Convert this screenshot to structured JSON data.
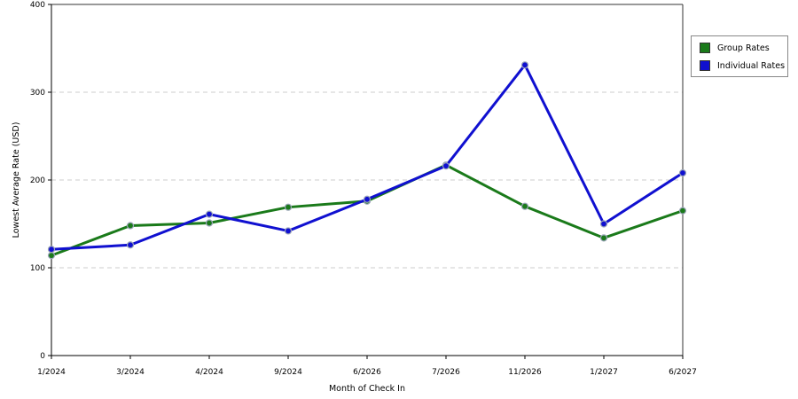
{
  "chart_data": {
    "type": "line",
    "title": "",
    "xlabel": "Month of Check In",
    "ylabel": "Lowest Average Rate (USD)",
    "categories": [
      "1/2024",
      "3/2024",
      "4/2024",
      "9/2024",
      "6/2026",
      "7/2026",
      "11/2026",
      "1/2027",
      "6/2027"
    ],
    "ylim": [
      0,
      400
    ],
    "yticks": [
      "0",
      "100",
      "200",
      "300",
      "400"
    ],
    "grid": true,
    "legend_position": "right",
    "series": [
      {
        "name": "Group Rates",
        "color": "#1a7a1a",
        "values": [
          114,
          148,
          151,
          169,
          176,
          217,
          170,
          134,
          165
        ]
      },
      {
        "name": "Individual Rates",
        "color": "#1010d0",
        "values": [
          121,
          126,
          161,
          142,
          178,
          216,
          331,
          150,
          208
        ]
      }
    ]
  }
}
